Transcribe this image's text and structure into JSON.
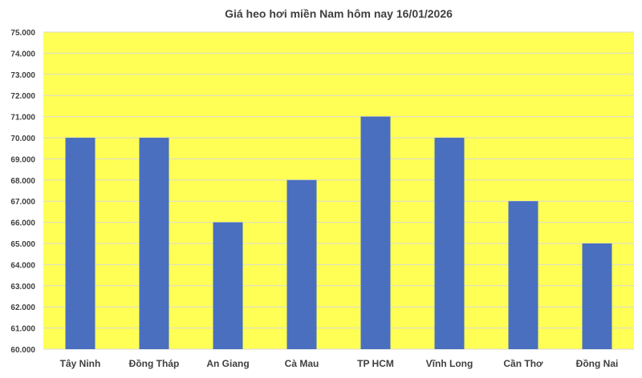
{
  "chart_data": {
    "type": "bar",
    "title": "Giá heo hơi miền Nam hôm nay 16/01/2026",
    "xlabel": "",
    "ylabel": "",
    "categories": [
      "Tây Ninh",
      "Đồng Tháp",
      "An Giang",
      "Cà Mau",
      "TP HCM",
      "Vĩnh Long",
      "Cần Thơ",
      "Đồng Nai"
    ],
    "values": [
      70000,
      70000,
      66000,
      68000,
      71000,
      70000,
      67000,
      65000
    ],
    "ylim": [
      60000,
      75000
    ],
    "ytick_step": 1000,
    "ytick_labels": [
      "60.000",
      "61.000",
      "62.000",
      "63.000",
      "64.000",
      "65.000",
      "66.000",
      "67.000",
      "68.000",
      "69.000",
      "70.000",
      "71.000",
      "72.000",
      "73.000",
      "74.000",
      "75.000"
    ],
    "grid": true,
    "legend": "none",
    "colors": {
      "bar": "#4A6FBE",
      "plot_background": "#FFFF55",
      "grid": "#D9D9D9",
      "text": "#404040"
    }
  }
}
